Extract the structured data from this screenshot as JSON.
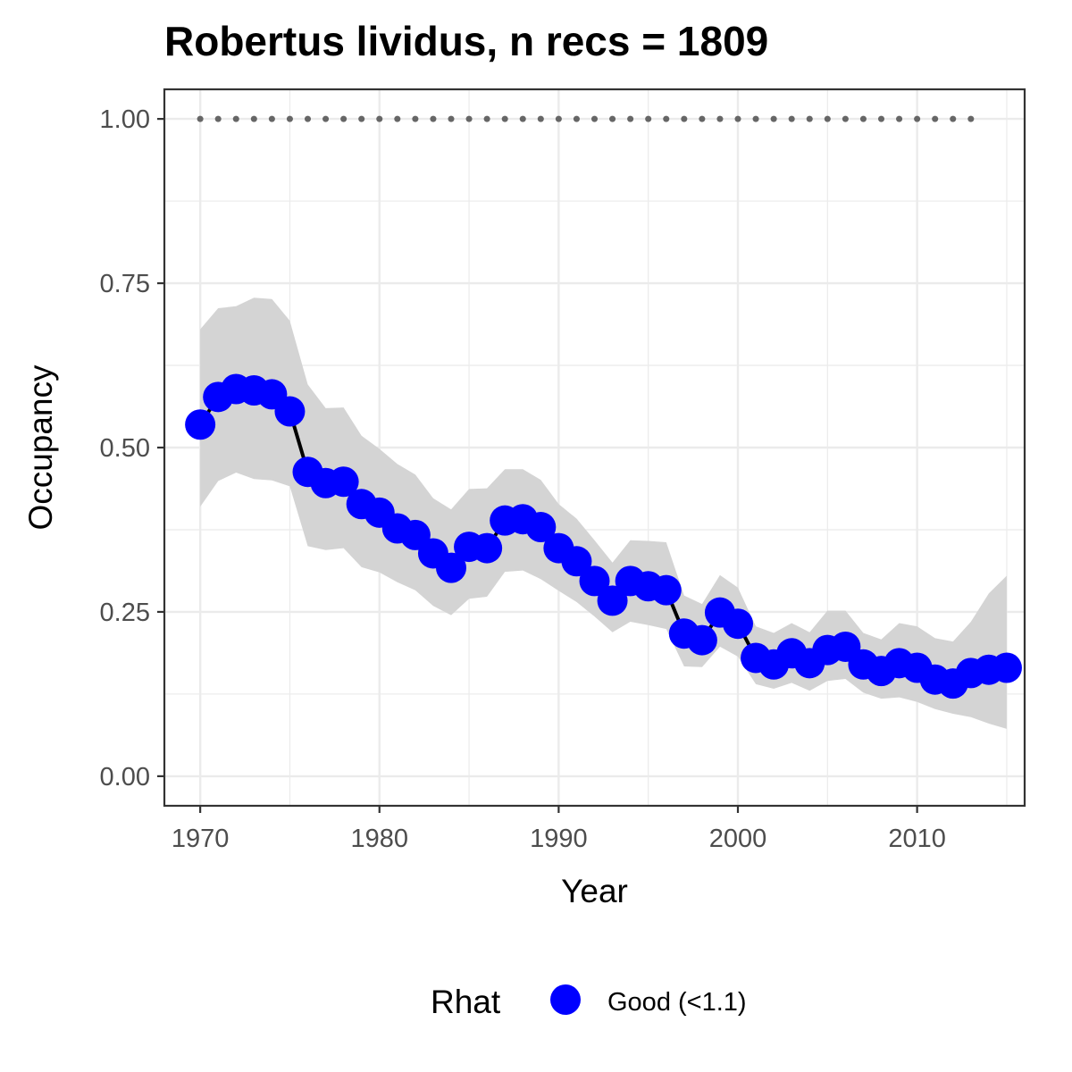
{
  "chart_data": {
    "type": "line",
    "title": "Robertus lividus, n recs = 1809",
    "xlabel": "Year",
    "ylabel": "Occupancy",
    "xlim": [
      1968,
      2016
    ],
    "ylim": [
      -0.045,
      1.045
    ],
    "x_ticks": [
      1970,
      1980,
      1990,
      2000,
      2010
    ],
    "x_tick_labels": [
      "1970",
      "1980",
      "1990",
      "2000",
      "2010"
    ],
    "y_ticks": [
      0,
      0.25,
      0.5,
      0.75,
      1.0
    ],
    "y_tick_labels": [
      "0.00",
      "0.25",
      "0.50",
      "0.75",
      "1.00"
    ],
    "grid": true,
    "legend": {
      "position": "bottom",
      "title": "Rhat",
      "items": [
        {
          "label": "Good (<1.1)",
          "color": "#0000ff"
        }
      ]
    },
    "colors": {
      "points": "#0000ff",
      "line": "#000000",
      "ribbon": "#d4d4d4",
      "reference": "#666666"
    },
    "reference_line": {
      "x_start": 1970,
      "x_end": 2013,
      "y": 1.0,
      "style": "dotted"
    },
    "series": [
      {
        "x": [
          1970,
          1971,
          1972,
          1973,
          1974,
          1975,
          1976,
          1977,
          1978,
          1979,
          1980,
          1981,
          1982,
          1983,
          1984,
          1985,
          1986,
          1987,
          1988,
          1989,
          1990,
          1991,
          1992,
          1993,
          1994,
          1995,
          1996,
          1997,
          1998,
          1999,
          2000,
          2001,
          2002,
          2003,
          2004,
          2005,
          2006,
          2007,
          2008,
          2009,
          2010,
          2011,
          2012,
          2013,
          2014,
          2015
        ],
        "y": [
          0.535,
          0.577,
          0.589,
          0.587,
          0.581,
          0.555,
          0.463,
          0.446,
          0.448,
          0.414,
          0.401,
          0.377,
          0.367,
          0.339,
          0.317,
          0.349,
          0.347,
          0.389,
          0.391,
          0.379,
          0.347,
          0.327,
          0.297,
          0.267,
          0.297,
          0.289,
          0.283,
          0.217,
          0.207,
          0.249,
          0.232,
          0.18,
          0.17,
          0.187,
          0.172,
          0.192,
          0.197,
          0.17,
          0.16,
          0.172,
          0.165,
          0.147,
          0.141,
          0.157,
          0.162,
          0.165
        ],
        "lower": [
          0.41,
          0.449,
          0.462,
          0.452,
          0.45,
          0.441,
          0.35,
          0.344,
          0.347,
          0.318,
          0.31,
          0.295,
          0.283,
          0.259,
          0.245,
          0.27,
          0.273,
          0.311,
          0.313,
          0.3,
          0.282,
          0.265,
          0.243,
          0.219,
          0.235,
          0.23,
          0.224,
          0.167,
          0.166,
          0.197,
          0.182,
          0.14,
          0.133,
          0.142,
          0.13,
          0.145,
          0.148,
          0.127,
          0.118,
          0.12,
          0.113,
          0.102,
          0.095,
          0.09,
          0.08,
          0.072
        ],
        "upper": [
          0.68,
          0.712,
          0.715,
          0.728,
          0.726,
          0.693,
          0.596,
          0.56,
          0.561,
          0.518,
          0.498,
          0.475,
          0.459,
          0.423,
          0.406,
          0.437,
          0.438,
          0.467,
          0.467,
          0.451,
          0.414,
          0.392,
          0.359,
          0.325,
          0.359,
          0.358,
          0.356,
          0.275,
          0.262,
          0.306,
          0.287,
          0.228,
          0.218,
          0.233,
          0.219,
          0.252,
          0.252,
          0.218,
          0.208,
          0.233,
          0.228,
          0.21,
          0.205,
          0.235,
          0.278,
          0.305
        ]
      }
    ]
  }
}
